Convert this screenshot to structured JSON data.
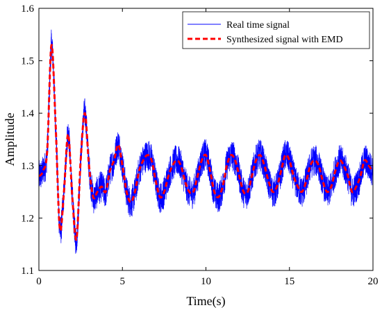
{
  "chart_data": {
    "type": "line",
    "xlabel": "Time(s)",
    "ylabel": "Amplitude",
    "xlim": [
      0,
      20
    ],
    "ylim": [
      1.1,
      1.6
    ],
    "xticks": [
      0,
      5,
      10,
      15,
      20
    ],
    "yticks": [
      1.1,
      1.2,
      1.3,
      1.4,
      1.5,
      1.6
    ],
    "xtick_labels": [
      "0",
      "5",
      "10",
      "15",
      "20"
    ],
    "ytick_labels": [
      "1.1",
      "1.2",
      "1.3",
      "1.4",
      "1.5",
      "1.6"
    ],
    "grid": false,
    "legend_position": "top-right",
    "series": [
      {
        "name": "Real time signal",
        "color": "#0000ff",
        "line_style": "solid",
        "noise_amplitude": 0.03,
        "x": [
          0,
          0.25,
          0.5,
          0.75,
          1.0,
          1.25,
          1.5,
          1.75,
          2.0,
          2.25,
          2.5,
          2.75,
          3.0,
          3.25,
          3.5,
          3.75,
          4.0,
          4.25,
          4.5,
          4.75,
          5.0,
          5.25,
          5.5,
          5.75,
          6.0,
          6.25,
          6.5,
          6.75,
          7.0,
          7.25,
          7.5,
          7.75,
          8.0,
          8.25,
          8.5,
          8.75,
          9.0,
          9.25,
          9.5,
          9.75,
          10.0,
          10.25,
          10.5,
          10.75,
          11.0,
          11.25,
          11.5,
          11.75,
          12.0,
          12.25,
          12.5,
          12.75,
          13.0,
          13.25,
          13.5,
          13.75,
          14.0,
          14.25,
          14.5,
          14.75,
          15.0,
          15.25,
          15.5,
          15.75,
          16.0,
          16.25,
          16.5,
          16.75,
          17.0,
          17.25,
          17.5,
          17.75,
          18.0,
          18.25,
          18.5,
          18.75,
          19.0,
          19.25,
          19.5,
          19.75,
          20.0
        ],
        "y": [
          1.28,
          1.29,
          1.33,
          1.53,
          1.38,
          1.18,
          1.25,
          1.36,
          1.24,
          1.16,
          1.31,
          1.4,
          1.3,
          1.24,
          1.25,
          1.26,
          1.25,
          1.29,
          1.31,
          1.34,
          1.3,
          1.25,
          1.23,
          1.25,
          1.29,
          1.31,
          1.32,
          1.31,
          1.27,
          1.24,
          1.25,
          1.28,
          1.3,
          1.31,
          1.3,
          1.27,
          1.25,
          1.25,
          1.28,
          1.31,
          1.32,
          1.29,
          1.25,
          1.24,
          1.26,
          1.3,
          1.32,
          1.31,
          1.28,
          1.25,
          1.25,
          1.28,
          1.31,
          1.32,
          1.3,
          1.27,
          1.25,
          1.26,
          1.29,
          1.32,
          1.31,
          1.28,
          1.26,
          1.25,
          1.27,
          1.3,
          1.31,
          1.3,
          1.27,
          1.25,
          1.26,
          1.29,
          1.31,
          1.3,
          1.28,
          1.25,
          1.26,
          1.28,
          1.31,
          1.3,
          1.29
        ]
      },
      {
        "name": "Synthesized signal with EMD",
        "color": "#ff0000",
        "line_style": "dashed",
        "x": [
          0,
          0.25,
          0.5,
          0.75,
          1.0,
          1.25,
          1.5,
          1.75,
          2.0,
          2.25,
          2.5,
          2.75,
          3.0,
          3.25,
          3.5,
          3.75,
          4.0,
          4.25,
          4.5,
          4.75,
          5.0,
          5.25,
          5.5,
          5.75,
          6.0,
          6.25,
          6.5,
          6.75,
          7.0,
          7.25,
          7.5,
          7.75,
          8.0,
          8.25,
          8.5,
          8.75,
          9.0,
          9.25,
          9.5,
          9.75,
          10.0,
          10.25,
          10.5,
          10.75,
          11.0,
          11.25,
          11.5,
          11.75,
          12.0,
          12.25,
          12.5,
          12.75,
          13.0,
          13.25,
          13.5,
          13.75,
          14.0,
          14.25,
          14.5,
          14.75,
          15.0,
          15.25,
          15.5,
          15.75,
          16.0,
          16.25,
          16.5,
          16.75,
          17.0,
          17.25,
          17.5,
          17.75,
          18.0,
          18.25,
          18.5,
          18.75,
          19.0,
          19.25,
          19.5,
          19.75,
          20.0
        ],
        "y": [
          1.28,
          1.29,
          1.33,
          1.53,
          1.38,
          1.18,
          1.25,
          1.36,
          1.24,
          1.16,
          1.31,
          1.4,
          1.3,
          1.24,
          1.25,
          1.26,
          1.25,
          1.29,
          1.31,
          1.34,
          1.3,
          1.25,
          1.23,
          1.25,
          1.29,
          1.31,
          1.32,
          1.31,
          1.27,
          1.24,
          1.25,
          1.28,
          1.3,
          1.31,
          1.3,
          1.27,
          1.25,
          1.25,
          1.28,
          1.31,
          1.32,
          1.29,
          1.25,
          1.24,
          1.26,
          1.3,
          1.32,
          1.31,
          1.28,
          1.25,
          1.25,
          1.28,
          1.31,
          1.32,
          1.3,
          1.27,
          1.25,
          1.26,
          1.29,
          1.32,
          1.31,
          1.28,
          1.26,
          1.25,
          1.27,
          1.3,
          1.31,
          1.3,
          1.27,
          1.25,
          1.26,
          1.29,
          1.31,
          1.3,
          1.28,
          1.25,
          1.26,
          1.28,
          1.31,
          1.3,
          1.29
        ]
      }
    ]
  }
}
